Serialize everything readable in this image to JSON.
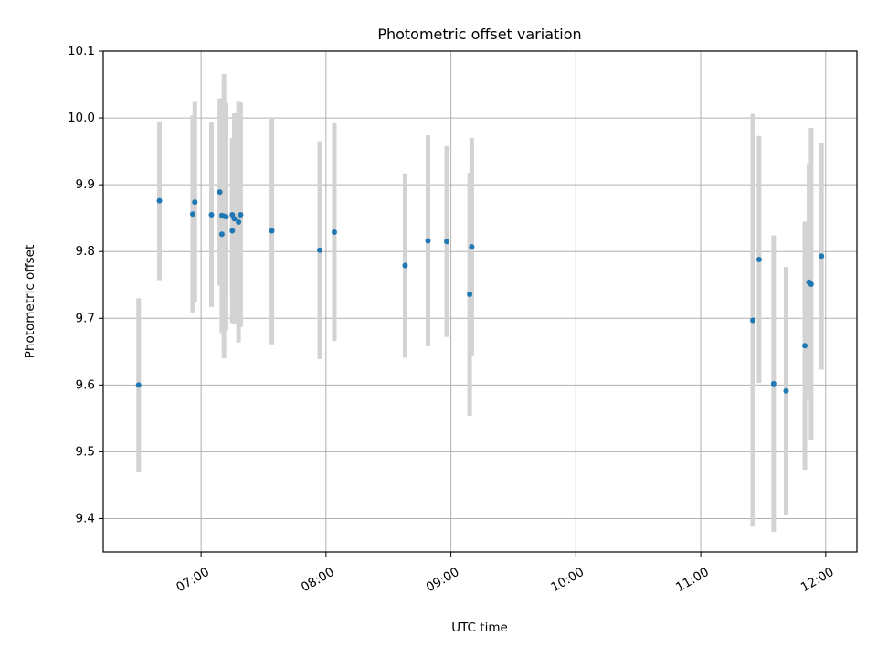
{
  "chart_data": {
    "type": "scatter",
    "title": "Photometric offset variation",
    "xlabel": "UTC time",
    "ylabel": "Photometric offset",
    "x_unit": "UTC time (HH:MM)",
    "xlim": [
      "06:13",
      "12:15"
    ],
    "ylim": [
      9.35,
      10.1
    ],
    "xticks": [
      "07:00",
      "08:00",
      "09:00",
      "10:00",
      "11:00",
      "12:00"
    ],
    "yticks": [
      "9.4",
      "9.5",
      "9.6",
      "9.7",
      "9.8",
      "9.9",
      "10.0",
      "10.1"
    ],
    "grid": true,
    "errorbar_color": "#d3d3d3",
    "point_color": "#1f77b4",
    "points": [
      {
        "time": "06:30",
        "y": 9.6,
        "err": 0.13
      },
      {
        "time": "06:40",
        "y": 9.876,
        "err": 0.119
      },
      {
        "time": "06:56",
        "y": 9.856,
        "err": 0.148
      },
      {
        "time": "06:57",
        "y": 9.874,
        "err": 0.15
      },
      {
        "time": "07:05",
        "y": 9.855,
        "err": 0.138
      },
      {
        "time": "07:09",
        "y": 9.889,
        "err": 0.14
      },
      {
        "time": "07:10",
        "y": 9.826,
        "err": 0.077
      },
      {
        "time": "07:10",
        "y": 9.854,
        "err": 0.176
      },
      {
        "time": "07:11",
        "y": 9.853,
        "err": 0.213
      },
      {
        "time": "07:12",
        "y": 9.852,
        "err": 0.17
      },
      {
        "time": "07:15",
        "y": 9.831,
        "err": 0.138
      },
      {
        "time": "07:15",
        "y": 9.855,
        "err": 0.115
      },
      {
        "time": "07:16",
        "y": 9.849,
        "err": 0.158
      },
      {
        "time": "07:18",
        "y": 9.844,
        "err": 0.18
      },
      {
        "time": "07:19",
        "y": 9.855,
        "err": 0.168
      },
      {
        "time": "07:34",
        "y": 9.831,
        "err": 0.17
      },
      {
        "time": "07:57",
        "y": 9.802,
        "err": 0.163
      },
      {
        "time": "08:04",
        "y": 9.829,
        "err": 0.163
      },
      {
        "time": "08:38",
        "y": 9.779,
        "err": 0.138
      },
      {
        "time": "08:49",
        "y": 9.816,
        "err": 0.158
      },
      {
        "time": "08:58",
        "y": 9.815,
        "err": 0.143
      },
      {
        "time": "09:09",
        "y": 9.736,
        "err": 0.182
      },
      {
        "time": "09:10",
        "y": 9.807,
        "err": 0.163
      },
      {
        "time": "11:25",
        "y": 9.697,
        "err": 0.309
      },
      {
        "time": "11:28",
        "y": 9.788,
        "err": 0.185
      },
      {
        "time": "11:35",
        "y": 9.602,
        "err": 0.222
      },
      {
        "time": "11:41",
        "y": 9.591,
        "err": 0.186
      },
      {
        "time": "11:50",
        "y": 9.659,
        "err": 0.186
      },
      {
        "time": "11:52",
        "y": 9.754,
        "err": 0.176
      },
      {
        "time": "11:53",
        "y": 9.751,
        "err": 0.234
      },
      {
        "time": "11:58",
        "y": 9.793,
        "err": 0.17
      }
    ]
  }
}
